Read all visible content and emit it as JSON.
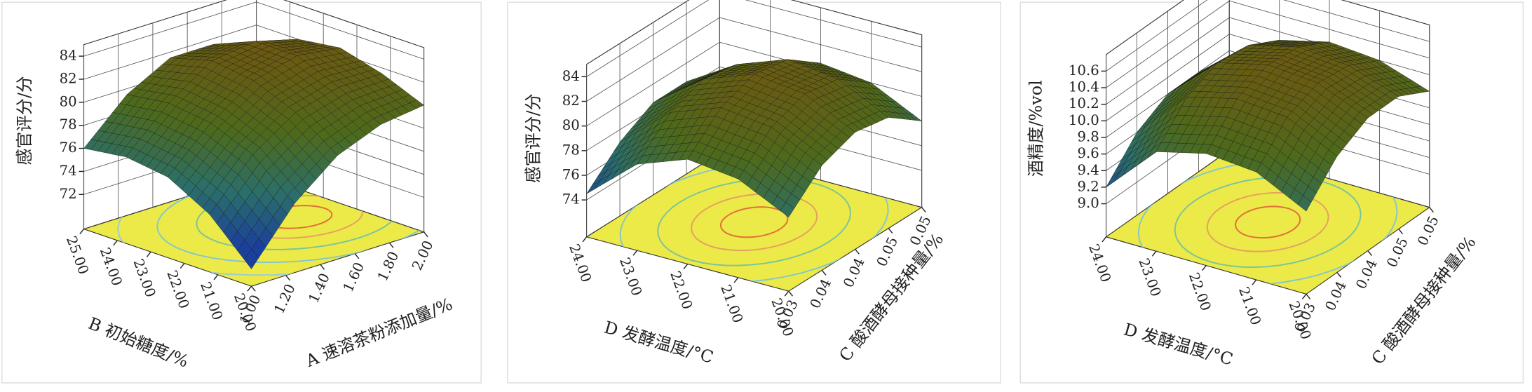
{
  "chart_data": [
    {
      "type": "surface",
      "xlabel": "A 速溶茶粉添加量/%",
      "ylabel": "B 初始糖度/%",
      "zlabel": "感官评分/分",
      "xlim": [
        1,
        2
      ],
      "ylim": [
        20,
        25
      ],
      "zlim": [
        69,
        85
      ],
      "xticks": [
        {
          "value": 1,
          "label": "1.00"
        },
        {
          "value": 1.2,
          "label": "1.20"
        },
        {
          "value": 1.4,
          "label": "1.40"
        },
        {
          "value": 1.6,
          "label": "1.60"
        },
        {
          "value": 1.8,
          "label": "1.80"
        },
        {
          "value": 2,
          "label": "2.00"
        }
      ],
      "yticks": [
        {
          "value": 20,
          "label": "20.00"
        },
        {
          "value": 21,
          "label": "21.00"
        },
        {
          "value": 22,
          "label": "22.00"
        },
        {
          "value": 23,
          "label": "23.00"
        },
        {
          "value": 24,
          "label": "24.00"
        },
        {
          "value": 25,
          "label": "25.00"
        }
      ],
      "zticks": [
        72,
        74,
        76,
        78,
        80,
        82,
        84
      ],
      "x": [
        1,
        1.25,
        1.5,
        1.75,
        2
      ],
      "y": [
        20,
        21.25,
        22.5,
        23.75,
        25
      ],
      "z": [
        [
          70.5,
          75,
          78,
          79.5,
          80
        ],
        [
          74,
          78,
          80.5,
          81.5,
          81.5
        ],
        [
          76,
          79.5,
          82,
          83,
          82.5
        ],
        [
          76.5,
          80,
          82.5,
          83,
          82
        ],
        [
          76,
          79.5,
          81.5,
          81.5,
          80
        ]
      ],
      "colors": [
        "#1b3f9c",
        "#2b6f6a",
        "#4d6a1c",
        "#6b5a12",
        "#8a3e10"
      ],
      "floor_color": "#ecea48"
    },
    {
      "type": "surface",
      "xlabel": "C 酸酒酵母接种量/%",
      "ylabel": "D 发酵温度/°C",
      "zlabel": "感官评分/分",
      "xlim": [
        0.03,
        0.05
      ],
      "ylim": [
        20,
        24
      ],
      "zlim": [
        71,
        85
      ],
      "xticks": [
        {
          "value": 0.03,
          "label": "0.03"
        },
        {
          "value": 0.035,
          "label": "0.04"
        },
        {
          "value": 0.04,
          "label": "0.04"
        },
        {
          "value": 0.045,
          "label": "0.05"
        },
        {
          "value": 0.05,
          "label": "0.05"
        }
      ],
      "yticks": [
        {
          "value": 20,
          "label": "20.00"
        },
        {
          "value": 21,
          "label": "21.00"
        },
        {
          "value": 22,
          "label": "22.00"
        },
        {
          "value": 23,
          "label": "23.00"
        },
        {
          "value": 24,
          "label": "24.00"
        }
      ],
      "zticks": [
        74,
        76,
        78,
        80,
        82,
        84
      ],
      "x": [
        0.03,
        0.035,
        0.04,
        0.045,
        0.05
      ],
      "y": [
        20,
        21,
        22,
        23,
        24
      ],
      "z": [
        [
          77,
          79.5,
          80.5,
          80,
          78
        ],
        [
          79,
          81.5,
          82.5,
          82,
          80
        ],
        [
          79.5,
          82,
          83,
          82.5,
          80.5
        ],
        [
          78,
          80.5,
          81.5,
          81,
          79.5
        ],
        [
          74.5,
          77,
          78.5,
          78.5,
          77
        ]
      ],
      "colors": [
        "#1b3f9c",
        "#2b6f6a",
        "#4d6a1c",
        "#6b5a12",
        "#8a3e10"
      ],
      "floor_color": "#ecea48"
    },
    {
      "type": "surface",
      "xlabel": "C 酸酒酵母接种量/%",
      "ylabel": "D 发酵温度/°C",
      "zlabel": "酒精度/%vol",
      "xlim": [
        0.03,
        0.05
      ],
      "ylim": [
        20,
        24
      ],
      "zlim": [
        8.6,
        10.8
      ],
      "xticks": [
        {
          "value": 0.03,
          "label": "0.03"
        },
        {
          "value": 0.035,
          "label": "0.04"
        },
        {
          "value": 0.04,
          "label": "0.04"
        },
        {
          "value": 0.045,
          "label": "0.05"
        },
        {
          "value": 0.05,
          "label": "0.05"
        }
      ],
      "yticks": [
        {
          "value": 20,
          "label": "20.00"
        },
        {
          "value": 21,
          "label": "21.00"
        },
        {
          "value": 22,
          "label": "22.00"
        },
        {
          "value": 23,
          "label": "23.00"
        },
        {
          "value": 24,
          "label": "24.00"
        }
      ],
      "zticks": [
        {
          "value": 9,
          "label": "9.0"
        },
        {
          "value": 9.2,
          "label": "9.2"
        },
        {
          "value": 9.4,
          "label": "9.4"
        },
        {
          "value": 9.6,
          "label": "9.6"
        },
        {
          "value": 9.8,
          "label": "9.8"
        },
        {
          "value": 10,
          "label": "10.0"
        },
        {
          "value": 10.2,
          "label": "10.2"
        },
        {
          "value": 10.4,
          "label": "10.4"
        },
        {
          "value": 10.6,
          "label": "10.6"
        }
      ],
      "x": [
        0.03,
        0.035,
        0.04,
        0.045,
        0.05
      ],
      "y": [
        20,
        21,
        22,
        23,
        24
      ],
      "z": [
        [
          9.6,
          10,
          10.2,
          10.2,
          10
        ],
        [
          9.9,
          10.3,
          10.45,
          10.4,
          10.2
        ],
        [
          9.95,
          10.35,
          10.5,
          10.45,
          10.25
        ],
        [
          9.8,
          10.2,
          10.35,
          10.3,
          10.1
        ],
        [
          9.2,
          9.6,
          9.8,
          9.8,
          9.6
        ]
      ],
      "colors": [
        "#1b3f9c",
        "#2b6f6a",
        "#4d6a1c",
        "#6b5a12",
        "#8a3e10"
      ],
      "floor_color": "#ecea48"
    }
  ]
}
